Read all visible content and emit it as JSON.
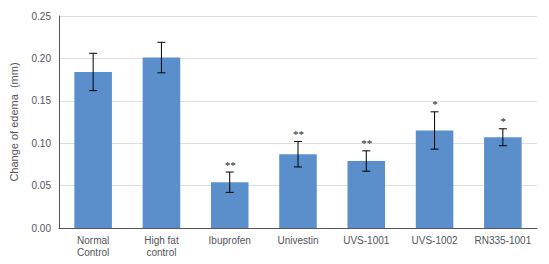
{
  "chart_data": {
    "type": "bar",
    "categories": [
      "Normal\nControl",
      "High fat\ncontrol",
      "Ibuprofen",
      "Univestin",
      "UVS-1001",
      "UVS-1002",
      "RN335-1001"
    ],
    "values": [
      0.184,
      0.201,
      0.054,
      0.087,
      0.079,
      0.115,
      0.107
    ],
    "errors": [
      0.022,
      0.018,
      0.012,
      0.015,
      0.012,
      0.022,
      0.01
    ],
    "significance": [
      null,
      null,
      "**",
      "**",
      "**",
      "*",
      "*"
    ],
    "color": "#5B8FCC",
    "ylabel": "Change of edema  (mm)",
    "ylim": [
      0,
      0.25
    ],
    "yticks": [
      {
        "value": 0,
        "label": "0.00"
      },
      0.05,
      {
        "value": 0.1,
        "label": "0.10"
      },
      0.15,
      {
        "value": 0.2,
        "label": "0.20"
      },
      0.25
    ],
    "grid": true
  }
}
